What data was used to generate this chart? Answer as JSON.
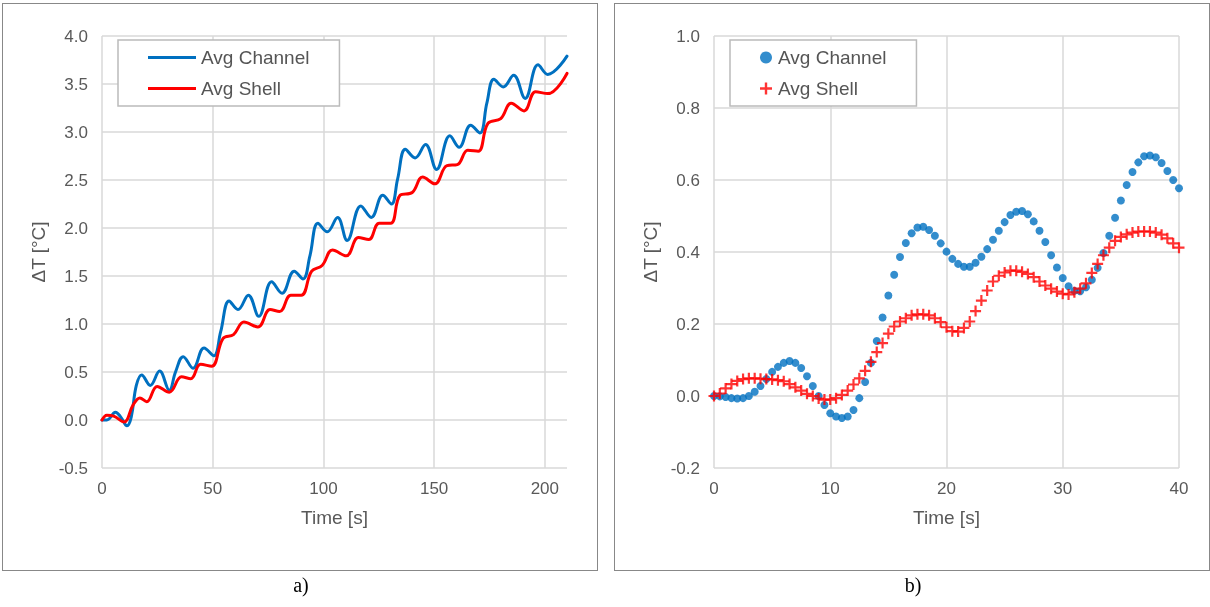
{
  "chart_data": [
    {
      "type": "line",
      "xlabel": "Time [s]",
      "ylabel": "ΔT [°C]",
      "xlim": [
        0,
        210
      ],
      "xticks": [
        0,
        50,
        100,
        150,
        200
      ],
      "ylim": [
        -0.5,
        4.0
      ],
      "yticks": [
        {
          "value": -0.5,
          "label": "-0.5"
        },
        {
          "value": 0,
          "label": "0.0"
        },
        {
          "value": 0.5,
          "label": "0.5"
        },
        {
          "value": 1,
          "label": "1.0"
        },
        {
          "value": 1.5,
          "label": "1.5"
        },
        {
          "value": 2,
          "label": "2.0"
        },
        {
          "value": 2.5,
          "label": "2.5"
        },
        {
          "value": 3,
          "label": "3.0"
        },
        {
          "value": 3.5,
          "label": "3.5"
        },
        {
          "value": 4,
          "label": "4.0"
        }
      ],
      "grid": true,
      "legend": "top left",
      "marker": "none",
      "annotations": [
        "a)"
      ],
      "series": [
        {
          "name": "Avg Channel",
          "color": "#0070c0",
          "x": [
            0,
            2.2,
            6.1,
            8.5,
            11.3,
            13.2,
            15.5,
            17.9,
            21.8,
            26,
            30.4,
            33.2,
            36.7,
            41.1,
            46.1,
            50.5,
            53.6,
            57.4,
            61.4,
            66.1,
            70.8,
            76.6,
            81.3,
            86.8,
            90.8,
            93.9,
            97.5,
            101.7,
            106.4,
            110.7,
            116.9,
            121.6,
            126.8,
            130.7,
            133.5,
            137,
            141.4,
            146.1,
            151.1,
            157.1,
            161.3,
            166.5,
            170.7,
            173.8,
            177,
            181.2,
            185.9,
            191.1,
            196.9,
            201.3,
            210
          ],
          "values": [
            0,
            0,
            0.08,
            0.03,
            -0.06,
            0.03,
            0.36,
            0.47,
            0.36,
            0.51,
            0.31,
            0.5,
            0.66,
            0.54,
            0.75,
            0.67,
            0.92,
            1.24,
            1.15,
            1.3,
            1.08,
            1.44,
            1.32,
            1.55,
            1.47,
            1.71,
            2.05,
            1.96,
            2.11,
            1.87,
            2.23,
            2.11,
            2.34,
            2.25,
            2.51,
            2.82,
            2.73,
            2.87,
            2.61,
            2.96,
            2.84,
            3.07,
            2.99,
            3.3,
            3.55,
            3.47,
            3.59,
            3.35,
            3.7,
            3.6,
            3.79
          ]
        },
        {
          "name": "Avg Shell",
          "color": "#ff0000",
          "x": [
            0,
            2.2,
            5.3,
            10,
            13.9,
            17.1,
            20.2,
            24.9,
            30.4,
            35.9,
            40.1,
            44.5,
            49.5,
            54.7,
            59.4,
            64.1,
            70.4,
            75.9,
            80.2,
            85.3,
            90,
            94.7,
            99.4,
            104.1,
            110.3,
            115.8,
            120.5,
            125.2,
            130.4,
            134.6,
            140.1,
            144.8,
            150.3,
            155.8,
            160.5,
            165.2,
            169.9,
            174.3,
            180.1,
            184.8,
            190.6,
            195.8,
            201.3,
            210
          ],
          "values": [
            0,
            0.05,
            0.04,
            -0.02,
            0.15,
            0.23,
            0.19,
            0.35,
            0.29,
            0.45,
            0.43,
            0.58,
            0.56,
            0.85,
            0.89,
            1.02,
            0.97,
            1.15,
            1.13,
            1.3,
            1.3,
            1.55,
            1.61,
            1.77,
            1.71,
            1.9,
            1.88,
            2.05,
            2.05,
            2.34,
            2.37,
            2.53,
            2.46,
            2.65,
            2.66,
            2.81,
            2.8,
            3.09,
            3.14,
            3.3,
            3.22,
            3.42,
            3.4,
            3.61
          ]
        }
      ]
    },
    {
      "type": "scatter",
      "xlabel": "Time [s]",
      "ylabel": "ΔT [°C]",
      "xlim": [
        0,
        40
      ],
      "xticks": [
        0,
        10,
        20,
        30,
        40
      ],
      "ylim": [
        -0.2,
        1.0
      ],
      "yticks": [
        {
          "value": -0.2,
          "label": "-0.2"
        },
        {
          "value": 0,
          "label": "0.0"
        },
        {
          "value": 0.2,
          "label": "0.2"
        },
        {
          "value": 0.4,
          "label": "0.4"
        },
        {
          "value": 0.6,
          "label": "0.6"
        },
        {
          "value": 0.8,
          "label": "0.8"
        },
        {
          "value": 1,
          "label": "1.0"
        }
      ],
      "grid": true,
      "legend": "top left",
      "annotations": [
        "b)"
      ],
      "x": [
        0,
        0.5,
        1,
        1.5,
        2,
        2.5,
        3,
        3.5,
        4,
        4.5,
        5,
        5.5,
        6,
        6.5,
        7,
        7.5,
        8,
        8.5,
        9,
        9.5,
        10,
        10.5,
        11,
        11.5,
        12,
        12.5,
        13,
        13.5,
        14,
        14.5,
        15,
        15.5,
        16,
        16.5,
        17,
        17.5,
        18,
        18.5,
        19,
        19.5,
        20,
        20.5,
        21,
        21.5,
        22,
        22.5,
        23,
        23.5,
        24,
        24.5,
        25,
        25.5,
        26,
        26.5,
        27,
        27.5,
        28,
        28.5,
        29,
        29.5,
        30,
        30.5,
        31,
        31.5,
        32,
        32.5,
        33,
        33.5,
        34,
        34.5,
        35,
        35.5,
        36,
        36.5,
        37,
        37.5,
        38,
        38.5,
        39,
        39.5,
        40
      ],
      "series": [
        {
          "name": "Avg Channel",
          "color": "#0070c0",
          "marker": "circle",
          "values": [
            0,
            -0.001,
            -0.003,
            -0.006,
            -0.007,
            -0.006,
            0,
            0.012,
            0.028,
            0.047,
            0.067,
            0.081,
            0.092,
            0.097,
            0.092,
            0.078,
            0.055,
            0.028,
            0,
            -0.025,
            -0.048,
            -0.057,
            -0.061,
            -0.057,
            -0.039,
            -0.006,
            0.039,
            0.092,
            0.153,
            0.218,
            0.279,
            0.337,
            0.386,
            0.425,
            0.452,
            0.468,
            0.47,
            0.461,
            0.445,
            0.424,
            0.401,
            0.381,
            0.367,
            0.359,
            0.359,
            0.37,
            0.387,
            0.408,
            0.434,
            0.459,
            0.483,
            0.503,
            0.512,
            0.514,
            0.505,
            0.485,
            0.459,
            0.428,
            0.391,
            0.357,
            0.328,
            0.305,
            0.292,
            0.291,
            0.302,
            0.323,
            0.356,
            0.397,
            0.445,
            0.495,
            0.543,
            0.586,
            0.622,
            0.649,
            0.666,
            0.668,
            0.663,
            0.647,
            0.625,
            0.6,
            0.577
          ]
        },
        {
          "name": "Avg Shell",
          "color": "#ff0000",
          "marker": "cross",
          "values": [
            0,
            0.007,
            0.021,
            0.033,
            0.042,
            0.047,
            0.049,
            0.049,
            0.048,
            0.047,
            0.046,
            0.044,
            0.041,
            0.033,
            0.024,
            0.015,
            0.006,
            0,
            -0.007,
            -0.01,
            -0.01,
            -0.006,
            0.003,
            0.015,
            0.032,
            0.049,
            0.07,
            0.095,
            0.122,
            0.147,
            0.173,
            0.193,
            0.207,
            0.216,
            0.224,
            0.227,
            0.227,
            0.224,
            0.216,
            0.205,
            0.191,
            0.18,
            0.179,
            0.189,
            0.207,
            0.236,
            0.265,
            0.293,
            0.318,
            0.334,
            0.343,
            0.348,
            0.348,
            0.345,
            0.339,
            0.33,
            0.318,
            0.307,
            0.298,
            0.29,
            0.284,
            0.282,
            0.288,
            0.298,
            0.313,
            0.342,
            0.367,
            0.391,
            0.412,
            0.431,
            0.442,
            0.449,
            0.454,
            0.457,
            0.457,
            0.457,
            0.454,
            0.448,
            0.438,
            0.424,
            0.412
          ]
        }
      ]
    }
  ]
}
